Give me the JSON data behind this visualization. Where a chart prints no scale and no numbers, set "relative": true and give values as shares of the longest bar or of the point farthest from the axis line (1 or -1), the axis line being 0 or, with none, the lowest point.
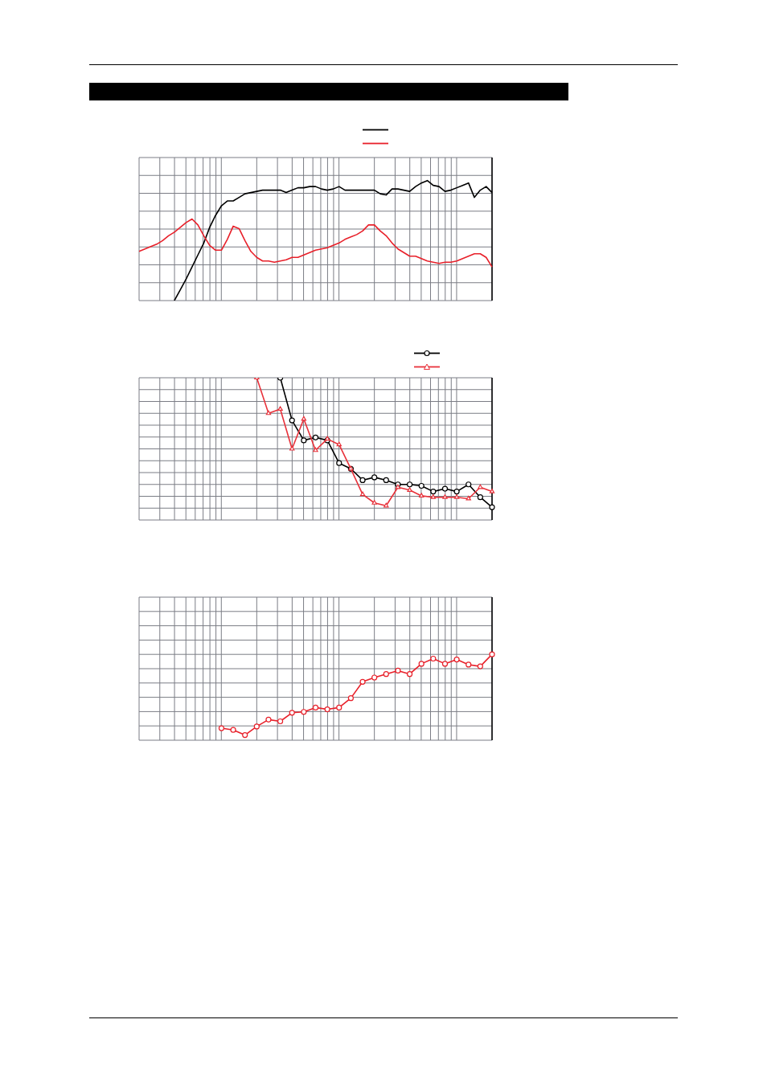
{
  "chart_data": [
    {
      "type": "line",
      "relative": true,
      "grid": true,
      "marker": "none",
      "categories": [
        null,
        null,
        null,
        null,
        null,
        null,
        null,
        null,
        null,
        null,
        null,
        null,
        null,
        null,
        null,
        null,
        null,
        null,
        null,
        null,
        null,
        null,
        null,
        null,
        null,
        null,
        null,
        null,
        null,
        null,
        null,
        null,
        null,
        null,
        null,
        null,
        null,
        null,
        null,
        null,
        null,
        null,
        null,
        null,
        null,
        null,
        null,
        null,
        null,
        null,
        null,
        null,
        null,
        null,
        null,
        null,
        null,
        null,
        null,
        null,
        null
      ],
      "series": [
        {
          "color": "#000000",
          "values": [
            null,
            null,
            null,
            null,
            null,
            null,
            0,
            0.09,
            0.18,
            0.28,
            0.38,
            0.48,
            0.61,
            0.71,
            0.79,
            0.83,
            0.83,
            0.86,
            0.89,
            0.9,
            0.91,
            0.92,
            0.92,
            0.92,
            0.92,
            0.9,
            0.92,
            0.94,
            0.94,
            0.95,
            0.95,
            0.93,
            0.92,
            0.93,
            0.95,
            0.92,
            0.92,
            0.92,
            0.92,
            0.92,
            0.92,
            0.89,
            0.88,
            0.93,
            0.93,
            0.92,
            0.91,
            0.95,
            0.98,
            1,
            0.96,
            0.95,
            0.91,
            0.92,
            0.94,
            0.96,
            0.98,
            0.86,
            0.92,
            0.95,
            0.9
          ]
        },
        {
          "color": "#e8202a",
          "values": [
            0.41,
            0.43,
            0.45,
            0.47,
            0.5,
            0.54,
            0.57,
            0.61,
            0.65,
            0.68,
            0.63,
            0.54,
            0.46,
            0.42,
            0.42,
            0.51,
            0.62,
            0.6,
            0.5,
            0.41,
            0.36,
            0.33,
            0.33,
            0.32,
            0.33,
            0.34,
            0.36,
            0.36,
            0.38,
            0.4,
            0.42,
            0.43,
            0.44,
            0.46,
            0.48,
            0.51,
            0.53,
            0.55,
            0.58,
            0.63,
            0.63,
            0.58,
            0.54,
            0.48,
            0.43,
            0.4,
            0.37,
            0.37,
            0.35,
            0.33,
            0.32,
            0.31,
            0.32,
            0.32,
            0.33,
            0.35,
            0.37,
            0.39,
            0.39,
            0.36,
            0.28
          ]
        }
      ]
    },
    {
      "type": "line",
      "relative": true,
      "grid": true,
      "categories": [
        null,
        null,
        null,
        null,
        null,
        null,
        null,
        null,
        null,
        null,
        null,
        null,
        null,
        null,
        null,
        null,
        null,
        null,
        null,
        null,
        null,
        null,
        null,
        null,
        null,
        null,
        null,
        null,
        null,
        null,
        null
      ],
      "series": [
        {
          "color": "#000000",
          "marker": "circle",
          "values": [
            null,
            null,
            null,
            null,
            null,
            null,
            null,
            null,
            null,
            null,
            null,
            null,
            1,
            0.7,
            0.56,
            0.58,
            0.56,
            0.4,
            0.36,
            0.28,
            0.3,
            0.28,
            0.25,
            0.25,
            0.24,
            0.2,
            0.22,
            0.2,
            0.25,
            0.16,
            0.09
          ]
        },
        {
          "color": "#e8313a",
          "marker": "triangle",
          "values": [
            null,
            null,
            null,
            null,
            null,
            null,
            null,
            null,
            null,
            null,
            1,
            0.75,
            0.78,
            0.5,
            0.71,
            0.49,
            0.57,
            0.53,
            0.36,
            0.18,
            0.12,
            0.1,
            0.23,
            0.21,
            0.17,
            0.16,
            0.16,
            0.16,
            0.15,
            0.23,
            0.2
          ]
        }
      ]
    },
    {
      "type": "line",
      "relative": true,
      "grid": true,
      "marker": "circle",
      "categories": [
        null,
        null,
        null,
        null,
        null,
        null,
        null,
        null,
        null,
        null,
        null,
        null,
        null,
        null,
        null,
        null,
        null,
        null,
        null,
        null,
        null,
        null,
        null,
        null,
        null,
        null,
        null,
        null,
        null,
        null,
        null
      ],
      "series": [
        {
          "color": "#e8202a",
          "values": [
            null,
            null,
            null,
            null,
            null,
            null,
            null,
            0.14,
            0.12,
            0.06,
            0.16,
            0.24,
            0.22,
            0.32,
            0.33,
            0.38,
            0.36,
            0.38,
            0.49,
            0.68,
            0.73,
            0.77,
            0.81,
            0.77,
            0.89,
            0.95,
            0.89,
            0.94,
            0.88,
            0.86,
            1
          ]
        }
      ]
    }
  ]
}
